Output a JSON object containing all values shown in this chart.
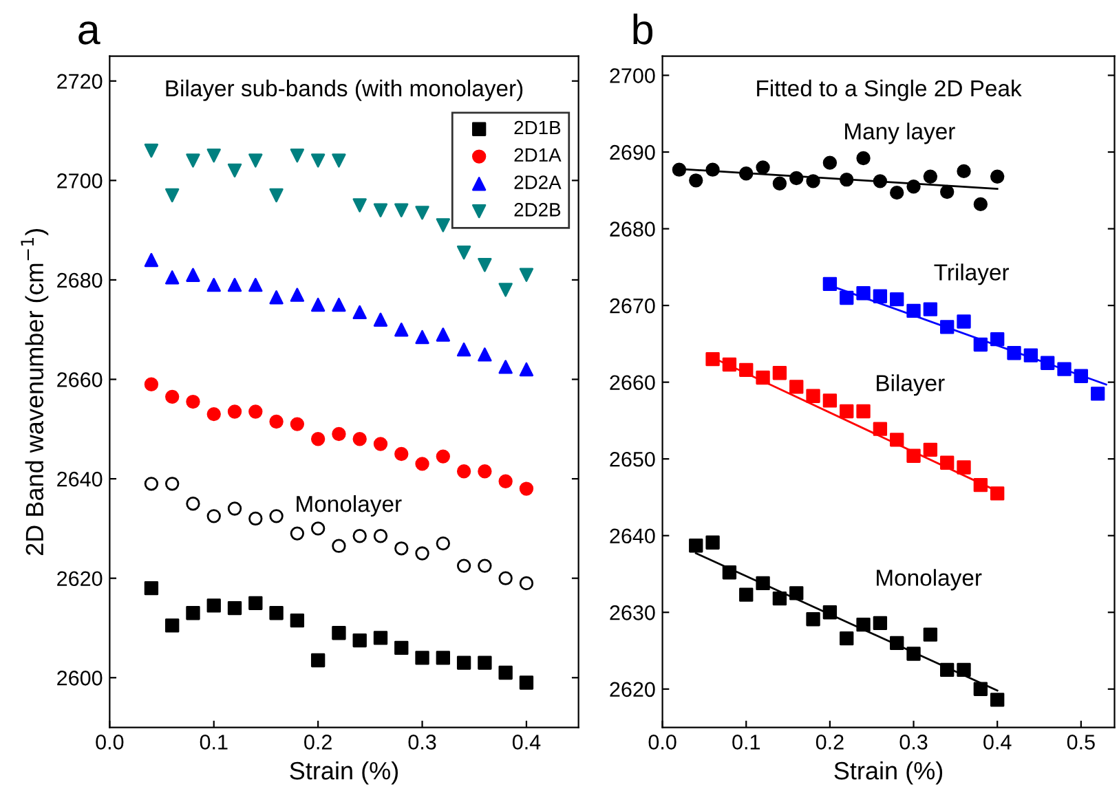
{
  "chart_data": [
    {
      "type": "scatter",
      "title": "Bilayer sub-bands (with monolayer)",
      "xlabel": "Strain (%)",
      "ylabel": "2D Band wavenumber (cm$^{−1}$)",
      "xlim": [
        0,
        0.45
      ],
      "ylim": [
        2590,
        2725
      ],
      "xticks": [
        {
          "value": 0,
          "label": "0.0"
        },
        0.1,
        0.2,
        0.3,
        0.4
      ],
      "yticks": [
        2600,
        2620,
        2640,
        2660,
        2680,
        2700,
        2720
      ],
      "grid": false,
      "legend": "top right",
      "annotations": [
        "a",
        "Monolayer"
      ],
      "series": [
        {
          "name": "2D1B",
          "type": "scatter",
          "marker": "square",
          "color": "#000000",
          "x": [
            0.04,
            0.06,
            0.08,
            0.1,
            0.12,
            0.14,
            0.16,
            0.18,
            0.2,
            0.22,
            0.24,
            0.26,
            0.28,
            0.3,
            0.32,
            0.34,
            0.36,
            0.38,
            0.4
          ],
          "values": [
            2618,
            2610.5,
            2613,
            2614.5,
            2614,
            2615,
            2613,
            2611.5,
            2603.5,
            2609,
            2607.5,
            2608,
            2606,
            2604,
            2604,
            2603,
            2603,
            2601,
            2599
          ]
        },
        {
          "name": "2D1A",
          "type": "scatter",
          "marker": "circle",
          "color": "#ff0000",
          "x": [
            0.04,
            0.06,
            0.08,
            0.1,
            0.12,
            0.14,
            0.16,
            0.18,
            0.2,
            0.22,
            0.24,
            0.26,
            0.28,
            0.3,
            0.32,
            0.34,
            0.36,
            0.38,
            0.4
          ],
          "values": [
            2659,
            2656.5,
            2655.5,
            2653,
            2653.5,
            2653.5,
            2651.5,
            2651,
            2648,
            2649,
            2648,
            2647,
            2645,
            2643,
            2644.5,
            2641.5,
            2641.5,
            2639.5,
            2638
          ]
        },
        {
          "name": "2D2A",
          "type": "scatter",
          "marker": "triangle",
          "color": "#0000ff",
          "x": [
            0.04,
            0.06,
            0.08,
            0.1,
            0.12,
            0.14,
            0.16,
            0.18,
            0.2,
            0.22,
            0.24,
            0.26,
            0.28,
            0.3,
            0.32,
            0.34,
            0.36,
            0.38,
            0.4
          ],
          "values": [
            2684,
            2680.5,
            2681,
            2679,
            2679,
            2679,
            2676.5,
            2677,
            2675,
            2675,
            2673.5,
            2672,
            2670,
            2668.5,
            2669,
            2666,
            2665,
            2662.5,
            2662
          ]
        },
        {
          "name": "2D2B",
          "type": "scatter",
          "marker": "triangle_down",
          "color": "#008080",
          "x": [
            0.04,
            0.06,
            0.08,
            0.1,
            0.12,
            0.14,
            0.16,
            0.18,
            0.2,
            0.22,
            0.24,
            0.26,
            0.28,
            0.3,
            0.32,
            0.34,
            0.36,
            0.38,
            0.4
          ],
          "values": [
            2706,
            2697,
            2704,
            2705,
            2702,
            2704,
            2697,
            2705,
            2704,
            2704,
            2695,
            2694,
            2694,
            2693.5,
            2691,
            2685.5,
            2683,
            2678,
            2681
          ]
        },
        {
          "marker": "open circle",
          "color": "#000000",
          "x": [
            0.04,
            0.06,
            0.08,
            0.1,
            0.12,
            0.14,
            0.16,
            0.18,
            0.2,
            0.22,
            0.24,
            0.26,
            0.28,
            0.3,
            0.32,
            0.34,
            0.36,
            0.38,
            0.4
          ],
          "values": [
            2639,
            2639,
            2635,
            2632.5,
            2634,
            2632,
            2632.5,
            2629,
            2630,
            2626.5,
            2628.5,
            2628.5,
            2626,
            2625,
            2627,
            2622.5,
            2622.5,
            2620,
            2619
          ]
        }
      ]
    },
    {
      "type": "scatter",
      "title": "Fitted to a Single 2D Peak",
      "xlabel": "Strain (%)",
      "xlim": [
        0,
        0.54
      ],
      "ylim": [
        2615,
        2702.5
      ],
      "xticks": [
        {
          "value": 0,
          "label": "0.0"
        },
        0.1,
        0.2,
        0.3,
        0.4,
        0.5
      ],
      "yticks": [
        2620,
        2630,
        2640,
        2650,
        2660,
        2670,
        2680,
        2690,
        2700
      ],
      "grid": false,
      "annotations": [
        "b",
        "Many layer",
        "Trilayer",
        "Bilayer",
        "Monolayer"
      ],
      "series": [
        {
          "type": "scatter",
          "marker": "circle",
          "color": "#000000",
          "x": [
            0.02,
            0.04,
            0.06,
            0.1,
            0.12,
            0.14,
            0.16,
            0.18,
            0.2,
            0.22,
            0.24,
            0.26,
            0.28,
            0.3,
            0.32,
            0.34,
            0.36,
            0.38,
            0.4
          ],
          "values": [
            2687.7,
            2686.3,
            2687.7,
            2687.2,
            2688,
            2685.9,
            2686.6,
            2686.2,
            2688.6,
            2686.4,
            2689.2,
            2686.2,
            2684.7,
            2685.5,
            2686.8,
            2684.8,
            2687.5,
            2683.2,
            2686.8
          ]
        },
        {
          "type": "line",
          "marker": "none",
          "color": "#000000",
          "x": [
            0.02,
            0.4
          ],
          "values": [
            2687.8,
            2685.2
          ]
        },
        {
          "type": "scatter",
          "marker": "square",
          "color": "#0000ff",
          "x": [
            0.2,
            0.22,
            0.24,
            0.26,
            0.28,
            0.3,
            0.32,
            0.34,
            0.36,
            0.38,
            0.4,
            0.42,
            0.44,
            0.46,
            0.48,
            0.5,
            0.52
          ],
          "values": [
            2672.8,
            2671,
            2671.6,
            2671.2,
            2670.8,
            2669.3,
            2669.5,
            2667.2,
            2667.9,
            2664.9,
            2665.6,
            2663.8,
            2663.5,
            2662.5,
            2661.7,
            2660.8,
            2658.5
          ]
        },
        {
          "type": "line",
          "marker": "none",
          "color": "#0000ff",
          "x": [
            0.2,
            0.53
          ],
          "values": [
            2672.6,
            2659.7
          ]
        },
        {
          "type": "scatter",
          "marker": "square",
          "color": "#ff0000",
          "x": [
            0.06,
            0.08,
            0.1,
            0.12,
            0.14,
            0.16,
            0.18,
            0.2,
            0.22,
            0.24,
            0.26,
            0.28,
            0.3,
            0.32,
            0.34,
            0.36,
            0.38,
            0.4
          ],
          "values": [
            2663,
            2662.3,
            2661.6,
            2660.6,
            2661.2,
            2659.4,
            2658.2,
            2657.6,
            2656.2,
            2656.2,
            2653.9,
            2652.5,
            2650.4,
            2651.2,
            2649.5,
            2648.9,
            2646.6,
            2645.5
          ]
        },
        {
          "type": "line",
          "marker": "none",
          "color": "#ff0000",
          "x": [
            0.06,
            0.4
          ],
          "values": [
            2663.2,
            2645.8
          ]
        },
        {
          "type": "scatter",
          "marker": "square",
          "color": "#000000",
          "x": [
            0.04,
            0.06,
            0.08,
            0.1,
            0.12,
            0.14,
            0.16,
            0.18,
            0.2,
            0.22,
            0.24,
            0.26,
            0.28,
            0.3,
            0.32,
            0.34,
            0.36,
            0.38,
            0.4
          ],
          "values": [
            2638.7,
            2639.1,
            2635.2,
            2632.3,
            2633.8,
            2631.8,
            2632.5,
            2629.1,
            2630,
            2626.6,
            2628.4,
            2628.6,
            2626,
            2624.6,
            2627.1,
            2622.5,
            2622.5,
            2620,
            2618.6
          ]
        },
        {
          "type": "line",
          "marker": "none",
          "color": "#000000",
          "x": [
            0.04,
            0.4
          ],
          "values": [
            2637.7,
            2619.8
          ]
        }
      ]
    }
  ]
}
